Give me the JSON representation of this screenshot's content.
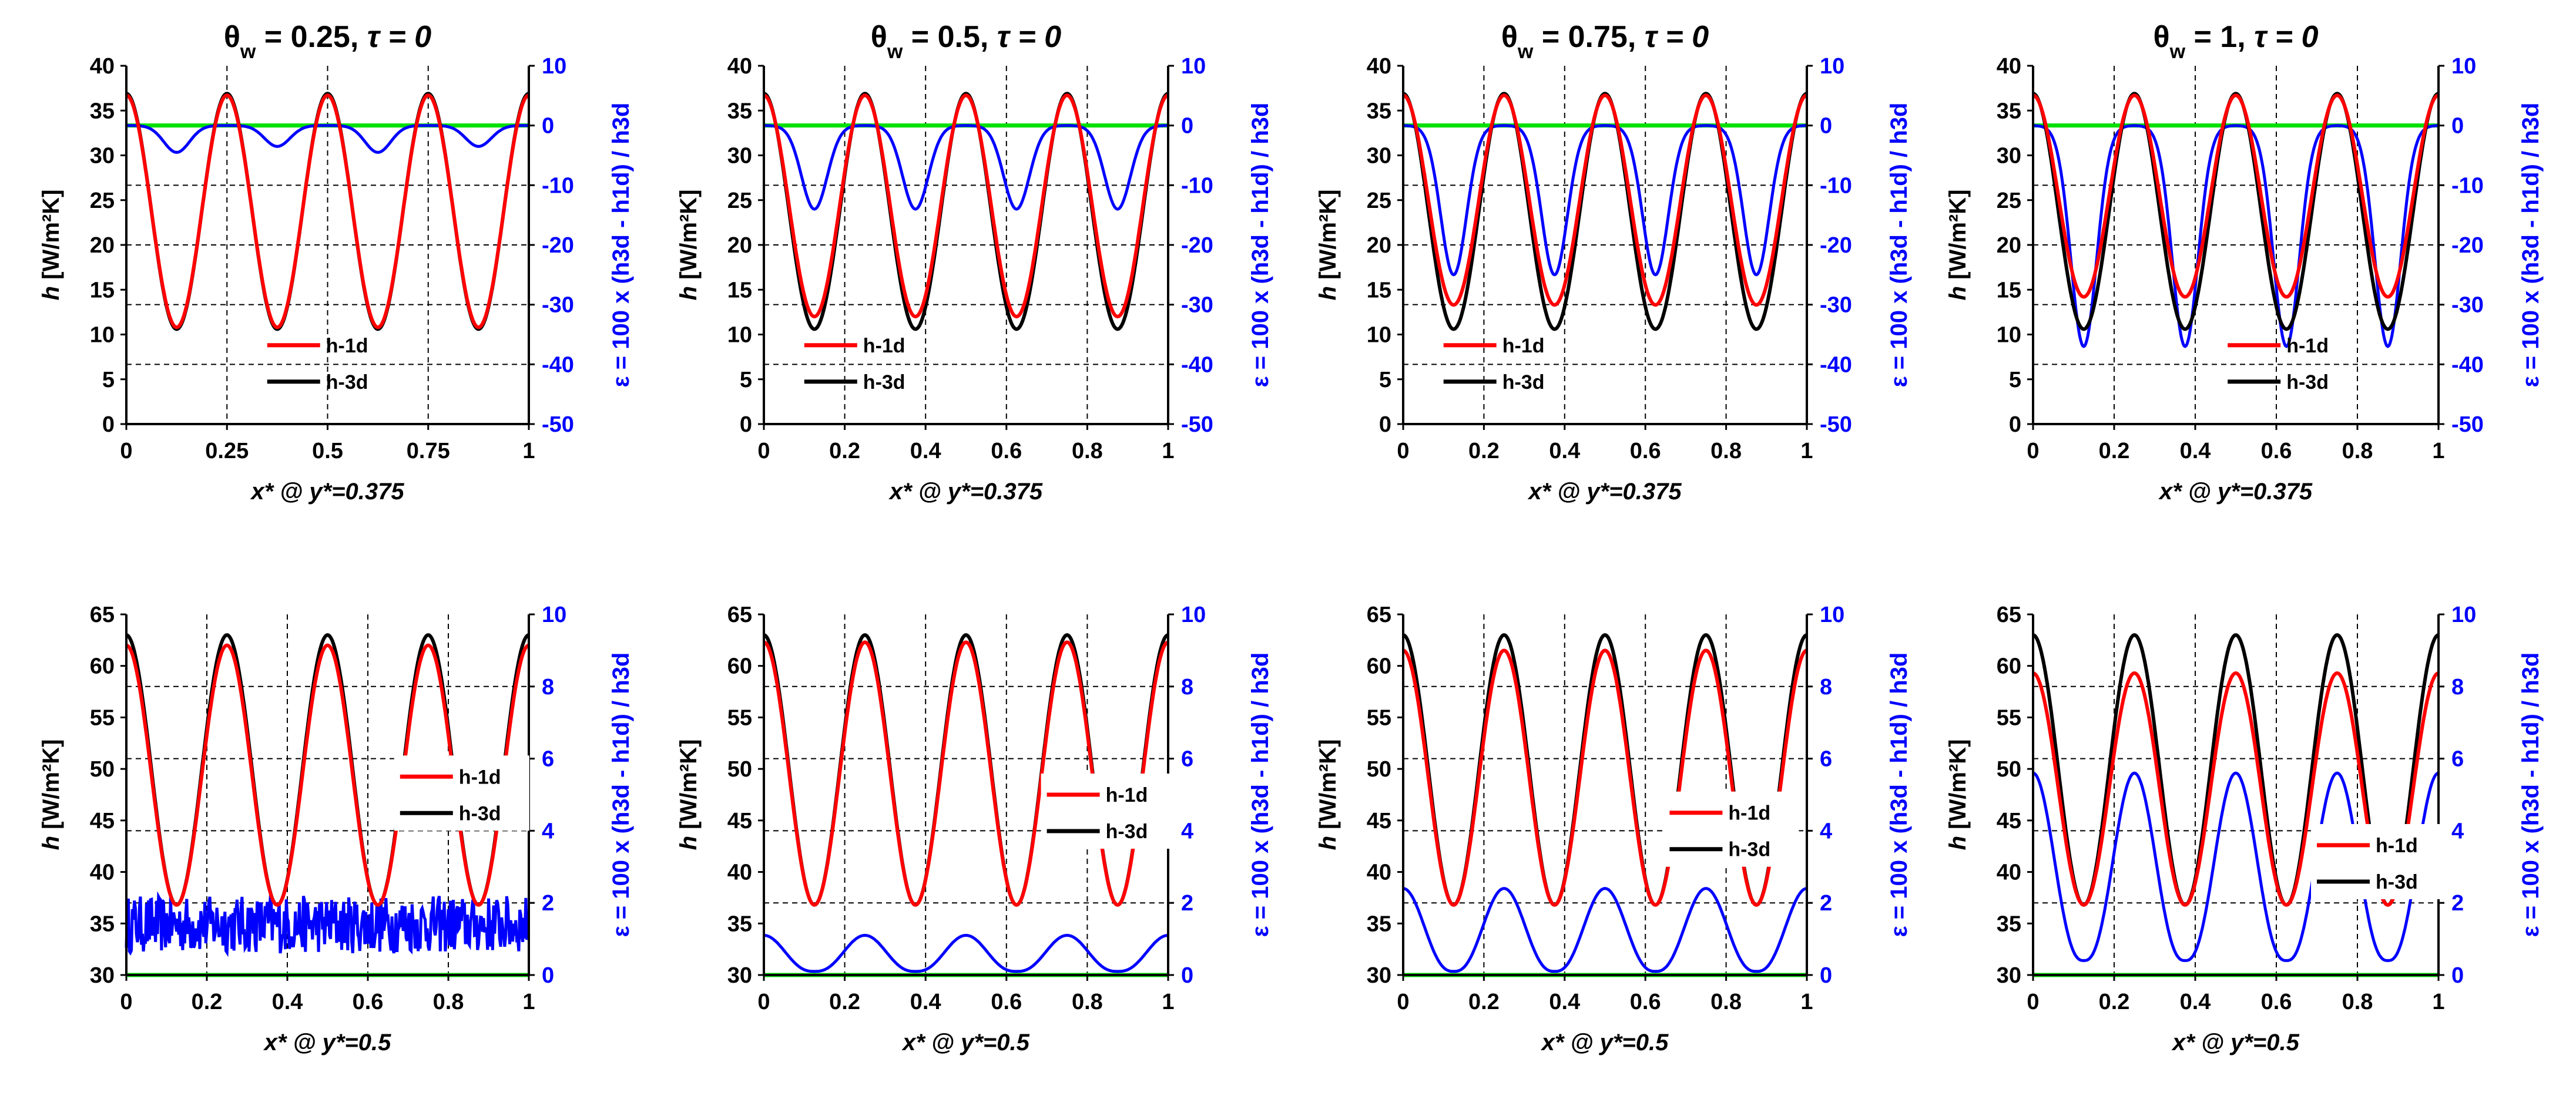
{
  "chart_data": [
    {
      "type": "line",
      "family": "fin",
      "title_prefix": "θ",
      "title_sub": "w",
      "title_value": " = 0.25, ",
      "title_tau": "τ = 0",
      "xlabel": "x* @ y*=0.375",
      "ylabel_h": "h",
      "ylabel_unit": " [W/m²K]",
      "ylabel_eps": "ε = 100 x (h3d - h1d) / h3d",
      "xlim": [
        0,
        1
      ],
      "ylim_left": [
        0,
        40
      ],
      "ylim_right": [
        -50,
        10
      ],
      "xticks": [
        "0",
        "0.25",
        "0.5",
        "0.75",
        "1"
      ],
      "yticks_left": [
        "0",
        "5",
        "10",
        "15",
        "20",
        "25",
        "30",
        "35",
        "40"
      ],
      "yticks_right": [
        "-50",
        "-40",
        "-30",
        "-20",
        "-10",
        "0",
        "10"
      ],
      "legend": [
        "h-1d",
        "h-3d"
      ],
      "legend_position": "lower-middle",
      "series": [
        {
          "name": "h-1d",
          "color": "#ff0000",
          "max": 36.7,
          "min": 10.8
        },
        {
          "name": "h-3d",
          "color": "#000000",
          "max": 36.9,
          "min": 10.6
        },
        {
          "name": "ε",
          "axis": "right",
          "color": "#0000ff",
          "max": 0,
          "dips": [
            -4.5,
            -3.5
          ]
        },
        {
          "name": "zero",
          "axis": "right",
          "color": "#00e000",
          "value": 0
        }
      ]
    },
    {
      "type": "line",
      "family": "fin",
      "title_prefix": "θ",
      "title_sub": "w",
      "title_value": " = 0.5, ",
      "title_tau": "τ = 0",
      "xlabel": "x* @ y*=0.375",
      "ylabel_h": "h",
      "ylabel_unit": " [W/m²K]",
      "ylabel_eps": "ε = 100 x (h3d - h1d) / h3d",
      "xlim": [
        0,
        1
      ],
      "ylim_left": [
        0,
        40
      ],
      "ylim_right": [
        -50,
        10
      ],
      "xticks": [
        "0",
        "0.2",
        "0.4",
        "0.6",
        "0.8",
        "1"
      ],
      "yticks_left": [
        "0",
        "5",
        "10",
        "15",
        "20",
        "25",
        "30",
        "35",
        "40"
      ],
      "yticks_right": [
        "-50",
        "-40",
        "-30",
        "-20",
        "-10",
        "0",
        "10"
      ],
      "legend": [
        "h-1d",
        "h-3d"
      ],
      "legend_position": "lower-left",
      "series": [
        {
          "name": "h-1d",
          "color": "#ff0000",
          "max": 36.7,
          "min": 12.0
        },
        {
          "name": "h-3d",
          "color": "#000000",
          "max": 36.9,
          "min": 10.6
        },
        {
          "name": "ε",
          "axis": "right",
          "color": "#0000ff",
          "max": 0,
          "dips": [
            -14,
            -14
          ]
        },
        {
          "name": "zero",
          "axis": "right",
          "color": "#00e000",
          "value": 0
        }
      ]
    },
    {
      "type": "line",
      "family": "fin",
      "title_prefix": "θ",
      "title_sub": "w",
      "title_value": " = 0.75, ",
      "title_tau": "τ = 0",
      "xlabel": "x* @ y*=0.375",
      "ylabel_h": "h",
      "ylabel_unit": " [W/m²K]",
      "ylabel_eps": "ε = 100 x (h3d - h1d) / h3d",
      "xlim": [
        0,
        1
      ],
      "ylim_left": [
        0,
        40
      ],
      "ylim_right": [
        -50,
        10
      ],
      "xticks": [
        "0",
        "0.2",
        "0.4",
        "0.6",
        "0.8",
        "1"
      ],
      "yticks_left": [
        "0",
        "5",
        "10",
        "15",
        "20",
        "25",
        "30",
        "35",
        "40"
      ],
      "yticks_right": [
        "-50",
        "-40",
        "-30",
        "-20",
        "-10",
        "0",
        "10"
      ],
      "legend": [
        "h-1d",
        "h-3d"
      ],
      "legend_position": "lower-left",
      "series": [
        {
          "name": "h-1d",
          "color": "#ff0000",
          "max": 36.7,
          "min": 13.3
        },
        {
          "name": "h-3d",
          "color": "#000000",
          "max": 36.9,
          "min": 10.6
        },
        {
          "name": "ε",
          "axis": "right",
          "color": "#0000ff",
          "max": 0,
          "dips": [
            -25,
            -25
          ]
        },
        {
          "name": "zero",
          "axis": "right",
          "color": "#00e000",
          "value": 0
        }
      ]
    },
    {
      "type": "line",
      "family": "fin",
      "title_prefix": "θ",
      "title_sub": "w",
      "title_value": " = 1, ",
      "title_tau": "τ = 0",
      "xlabel": "x* @ y*=0.375",
      "ylabel_h": "h",
      "ylabel_unit": " [W/m²K]",
      "ylabel_eps": "ε = 100 x (h3d - h1d) / h3d",
      "xlim": [
        0,
        1
      ],
      "ylim_left": [
        0,
        40
      ],
      "ylim_right": [
        -50,
        10
      ],
      "xticks": [
        "0",
        "0.2",
        "0.4",
        "0.6",
        "0.8",
        "1"
      ],
      "yticks_left": [
        "0",
        "5",
        "10",
        "15",
        "20",
        "25",
        "30",
        "35",
        "40"
      ],
      "yticks_right": [
        "-50",
        "-40",
        "-30",
        "-20",
        "-10",
        "0",
        "10"
      ],
      "legend": [
        "h-1d",
        "h-3d"
      ],
      "legend_position": "lower-right",
      "series": [
        {
          "name": "h-1d",
          "color": "#ff0000",
          "max": 36.7,
          "min": 14.2
        },
        {
          "name": "h-3d",
          "color": "#000000",
          "max": 36.9,
          "min": 10.6
        },
        {
          "name": "ε",
          "axis": "right",
          "color": "#0000ff",
          "max": 0,
          "dips": [
            -37,
            -37
          ]
        },
        {
          "name": "zero",
          "axis": "right",
          "color": "#00e000",
          "value": 0
        }
      ]
    },
    {
      "type": "line",
      "family": "tube",
      "xlabel": "x* @ y*=0.5",
      "ylabel_h": "h",
      "ylabel_unit": " [W/m²K]",
      "ylabel_eps": "ε = 100 x (h3d - h1d) / h3d",
      "xlim": [
        0,
        1
      ],
      "ylim_left": [
        30,
        65
      ],
      "ylim_right": [
        0,
        10
      ],
      "xticks": [
        "0",
        "0.2",
        "0.4",
        "0.6",
        "0.8",
        "1"
      ],
      "yticks_left": [
        "30",
        "35",
        "40",
        "45",
        "50",
        "55",
        "60",
        "65"
      ],
      "yticks_right": [
        "0",
        "2",
        "4",
        "6",
        "8",
        "10"
      ],
      "legend": [
        "h-1d",
        "h-3d"
      ],
      "legend_position": "middle-right",
      "series": [
        {
          "name": "h-1d",
          "color": "#ff0000",
          "max": 62.0,
          "min": 36.8
        },
        {
          "name": "h-3d",
          "color": "#000000",
          "max": 63.0,
          "min": 36.8
        },
        {
          "name": "ε",
          "axis": "right",
          "color": "#0000ff",
          "mean": 1.4,
          "noise": 0.8
        },
        {
          "name": "zero",
          "axis": "right",
          "color": "#00e000",
          "value": 0
        }
      ]
    },
    {
      "type": "line",
      "family": "tube",
      "xlabel": "x* @ y*=0.5",
      "ylabel_h": "h",
      "ylabel_unit": " [W/m²K]",
      "ylabel_eps": "ε = 100 x (h3d - h1d) / h3d",
      "xlim": [
        0,
        1
      ],
      "ylim_left": [
        30,
        65
      ],
      "ylim_right": [
        0,
        10
      ],
      "xticks": [
        "0",
        "0.2",
        "0.4",
        "0.6",
        "0.8",
        "1"
      ],
      "yticks_left": [
        "30",
        "35",
        "40",
        "45",
        "50",
        "55",
        "60",
        "65"
      ],
      "yticks_right": [
        "0",
        "2",
        "4",
        "6",
        "8",
        "10"
      ],
      "legend": [
        "h-1d",
        "h-3d"
      ],
      "legend_position": "middle-right",
      "series": [
        {
          "name": "h-1d",
          "color": "#ff0000",
          "max": 62.3,
          "min": 36.8
        },
        {
          "name": "h-3d",
          "color": "#000000",
          "max": 63.0,
          "min": 36.8
        },
        {
          "name": "ε",
          "axis": "right",
          "color": "#0000ff",
          "peak": 1.1,
          "valley": 0.1
        },
        {
          "name": "zero",
          "axis": "right",
          "color": "#00e000",
          "value": 0
        }
      ]
    },
    {
      "type": "line",
      "family": "tube",
      "xlabel": "x* @ y*=0.5",
      "ylabel_h": "h",
      "ylabel_unit": " [W/m²K]",
      "ylabel_eps": "ε = 100 x (h3d - h1d) / h3d",
      "xlim": [
        0,
        1
      ],
      "ylim_left": [
        30,
        65
      ],
      "ylim_right": [
        0,
        10
      ],
      "xticks": [
        "0",
        "0.2",
        "0.4",
        "0.6",
        "0.8",
        "1"
      ],
      "yticks_left": [
        "30",
        "35",
        "40",
        "45",
        "50",
        "55",
        "60",
        "65"
      ],
      "yticks_right": [
        "0",
        "2",
        "4",
        "6",
        "8",
        "10"
      ],
      "legend": [
        "h-1d",
        "h-3d"
      ],
      "legend_position": "middle-right",
      "series": [
        {
          "name": "h-1d",
          "color": "#ff0000",
          "max": 61.5,
          "min": 36.8
        },
        {
          "name": "h-3d",
          "color": "#000000",
          "max": 63.0,
          "min": 36.8
        },
        {
          "name": "ε",
          "axis": "right",
          "color": "#0000ff",
          "peak": 2.4,
          "valley": 0.1
        },
        {
          "name": "zero",
          "axis": "right",
          "color": "#00e000",
          "value": 0
        }
      ]
    },
    {
      "type": "line",
      "family": "tube",
      "xlabel": "x* @ y*=0.5",
      "ylabel_h": "h",
      "ylabel_unit": " [W/m²K]",
      "ylabel_eps": "ε = 100 x (h3d - h1d) / h3d",
      "xlim": [
        0,
        1
      ],
      "ylim_left": [
        30,
        65
      ],
      "ylim_right": [
        0,
        10
      ],
      "xticks": [
        "0",
        "0.2",
        "0.4",
        "0.6",
        "0.8",
        "1"
      ],
      "yticks_left": [
        "30",
        "35",
        "40",
        "45",
        "50",
        "55",
        "60",
        "65"
      ],
      "yticks_right": [
        "0",
        "2",
        "4",
        "6",
        "8",
        "10"
      ],
      "legend": [
        "h-1d",
        "h-3d"
      ],
      "legend_position": "lower-right",
      "series": [
        {
          "name": "h-1d",
          "color": "#ff0000",
          "max": 59.3,
          "min": 36.8
        },
        {
          "name": "h-3d",
          "color": "#000000",
          "max": 63.0,
          "min": 36.8
        },
        {
          "name": "ε",
          "axis": "right",
          "color": "#0000ff",
          "peak": 5.6,
          "valley": 0.4
        },
        {
          "name": "zero",
          "axis": "right",
          "color": "#00e000",
          "value": 0
        }
      ]
    }
  ]
}
